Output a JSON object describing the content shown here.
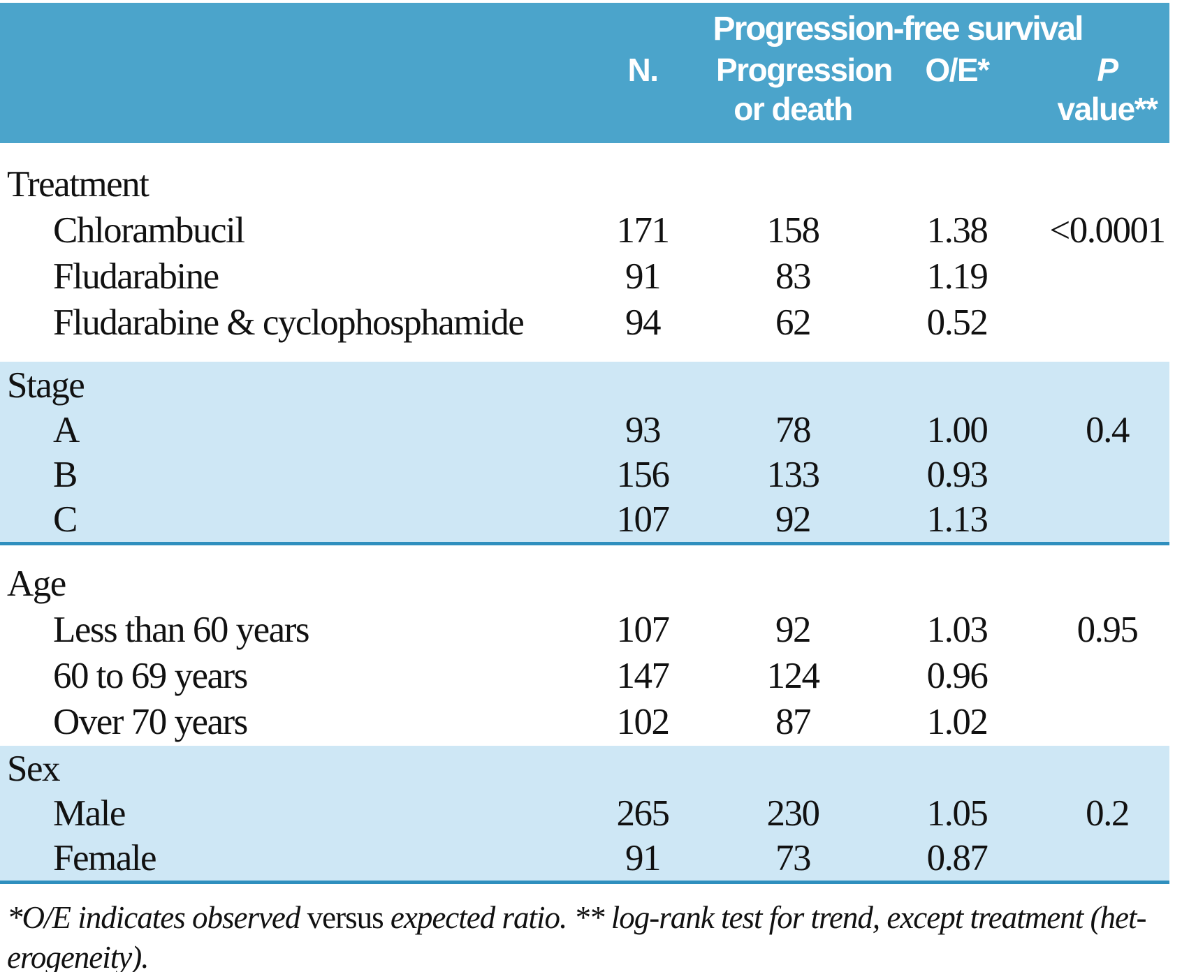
{
  "colors": {
    "header_bg": "#4BA4CB",
    "band_bg": "#CEE7F5",
    "rule": "#2F8FBE",
    "header_text": "#FFFFFF",
    "body_text": "#111111"
  },
  "header": {
    "group_title": "Progression-free survival",
    "col_n": "N.",
    "col_progression": "Progression\nor death",
    "col_oe": "O/E*",
    "col_p_italic": "P",
    "col_p_rest": " value**"
  },
  "sections": [
    {
      "label": "Treatment",
      "shaded": false,
      "rows": [
        {
          "label": "Chlorambucil",
          "n": "171",
          "progression": "158",
          "oe": "1.38",
          "p": "<0.0001"
        },
        {
          "label": "Fludarabine",
          "n": "91",
          "progression": "83",
          "oe": "1.19",
          "p": ""
        },
        {
          "label": "Fludarabine & cyclophosphamide",
          "n": "94",
          "progression": "62",
          "oe": "0.52",
          "p": ""
        }
      ]
    },
    {
      "label": "Stage",
      "shaded": true,
      "rows": [
        {
          "label": "A",
          "n": "93",
          "progression": "78",
          "oe": "1.00",
          "p": "0.4"
        },
        {
          "label": "B",
          "n": "156",
          "progression": "133",
          "oe": "0.93",
          "p": ""
        },
        {
          "label": "C",
          "n": "107",
          "progression": "92",
          "oe": "1.13",
          "p": ""
        }
      ]
    },
    {
      "label": "Age",
      "shaded": false,
      "rows": [
        {
          "label": "Less than 60 years",
          "n": "107",
          "progression": "92",
          "oe": "1.03",
          "p": "0.95"
        },
        {
          "label": "60 to 69 years",
          "n": "147",
          "progression": "124",
          "oe": "0.96",
          "p": ""
        },
        {
          "label": "Over 70 years",
          "n": "102",
          "progression": "87",
          "oe": "1.02",
          "p": ""
        }
      ]
    },
    {
      "label": "Sex",
      "shaded": true,
      "rows": [
        {
          "label": "Male",
          "n": "265",
          "progression": "230",
          "oe": "1.05",
          "p": "0.2"
        },
        {
          "label": "Female",
          "n": "91",
          "progression": "73",
          "oe": "0.87",
          "p": ""
        }
      ]
    }
  ],
  "footnote": {
    "part_italic_1": "*O/E indicates observed ",
    "part_roman": "versus",
    "part_italic_2": " expected ratio. ** log-rank test for trend, except treatment (het-",
    "line2": "erogeneity)."
  }
}
